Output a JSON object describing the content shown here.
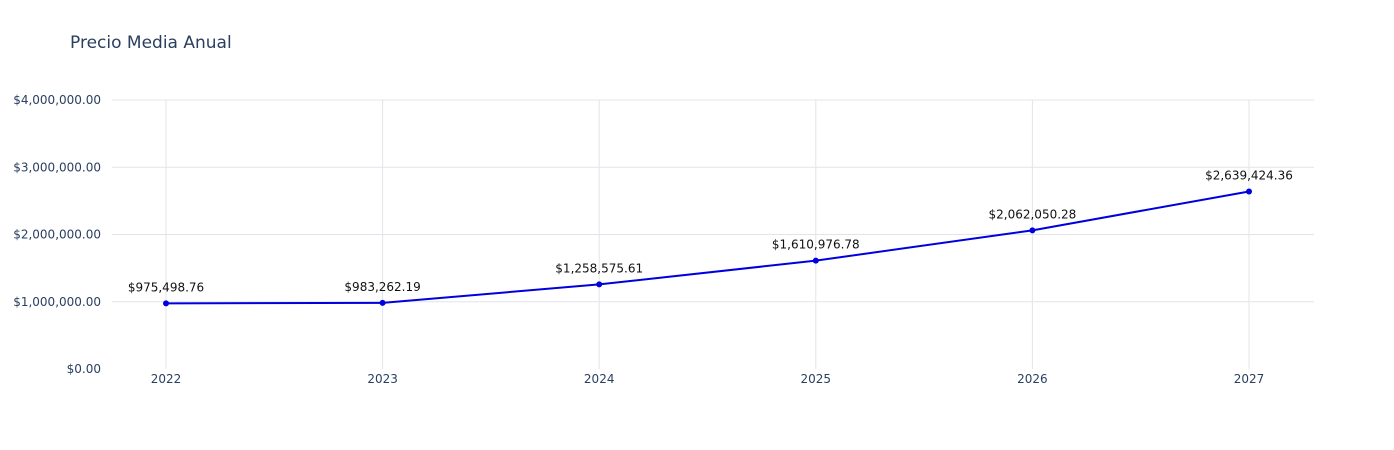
{
  "chart_data": {
    "type": "line",
    "title": "Precio Media Anual",
    "xlabel": "",
    "ylabel": "",
    "x": [
      "2022",
      "2023",
      "2024",
      "2025",
      "2026",
      "2027"
    ],
    "ylim": [
      0,
      4000000
    ],
    "yticks": [
      0,
      1000000,
      2000000,
      3000000,
      4000000
    ],
    "ytick_labels": [
      "$0.00",
      "$1,000,000.00",
      "$2,000,000.00",
      "$3,000,000.00",
      "$4,000,000.00"
    ],
    "grid": true,
    "legend": "none",
    "series": [
      {
        "color": "#0000dd",
        "values": [
          975498.76,
          983262.19,
          1258575.61,
          1610976.78,
          2062050.28,
          2639424.36
        ],
        "labels": [
          "$975,498.76",
          "$983,262.19",
          "$1,258,575.61",
          "$1,610,976.78",
          "$2,062,050.28",
          "$2,639,424.36"
        ]
      }
    ]
  }
}
